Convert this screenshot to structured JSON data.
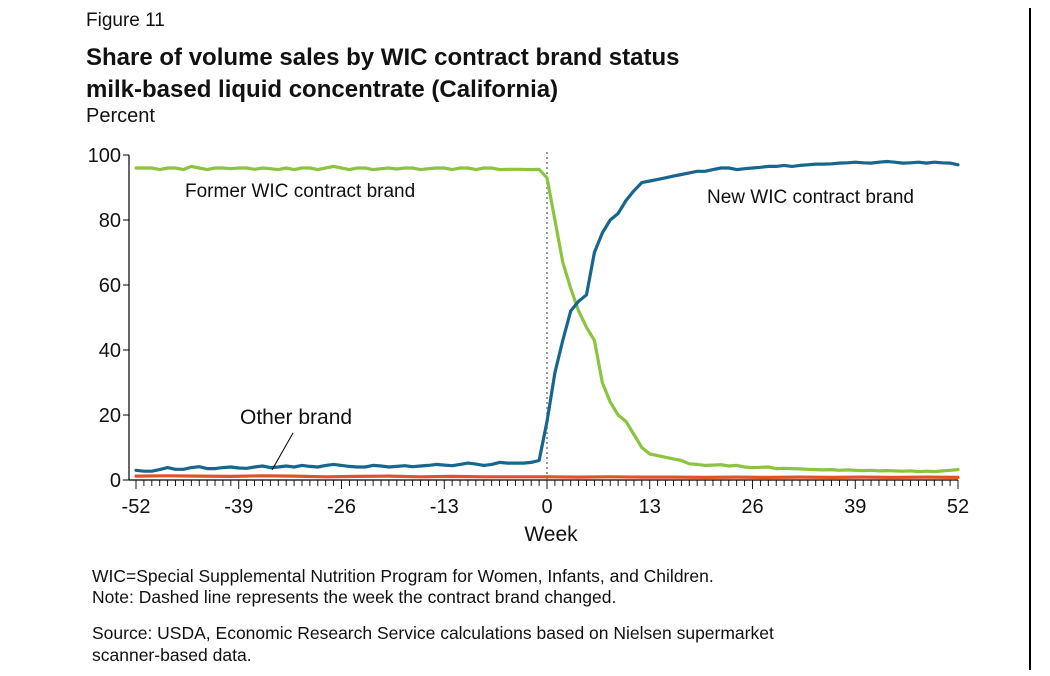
{
  "figure_label": "Figure 11",
  "title_line1": "Share of volume sales by WIC contract brand status",
  "title_line2": "milk-based liquid concentrate (California)",
  "unit_label": "Percent",
  "footnotes": {
    "line1": "WIC=Special Supplemental Nutrition Program for Women, Infants, and Children.",
    "line2": "Note: Dashed line represents the week the contract brand changed.",
    "source1": "Source: USDA, Economic Research Service calculations based on Nielsen supermarket",
    "source2": "scanner-based data."
  },
  "chart_data": {
    "type": "line",
    "xlabel": "Week",
    "ylabel": "Percent",
    "xlim": [
      -52,
      52
    ],
    "ylim": [
      0,
      100
    ],
    "x_ticks": [
      -52,
      -39,
      -26,
      -13,
      0,
      13,
      26,
      39,
      52
    ],
    "x_tick_labels": [
      "-52",
      "-39",
      "-26",
      "-13",
      "0",
      "13",
      "26",
      "39",
      "52"
    ],
    "y_ticks": [
      0,
      20,
      40,
      60,
      80,
      100
    ],
    "y_tick_labels": [
      "0",
      "20",
      "40",
      "60",
      "80",
      "100"
    ],
    "reference_line": {
      "x": 0,
      "style": "dashed",
      "color": "#999999"
    },
    "series": [
      {
        "name": "Former WIC contract brand",
        "color": "#8cc43f",
        "x": [
          -52,
          -51,
          -50,
          -49,
          -48,
          -47,
          -46,
          -45,
          -44,
          -43,
          -42,
          -41,
          -40,
          -39,
          -38,
          -37,
          -36,
          -35,
          -34,
          -33,
          -32,
          -31,
          -30,
          -29,
          -28,
          -27,
          -26,
          -25,
          -24,
          -23,
          -22,
          -21,
          -20,
          -19,
          -18,
          -17,
          -16,
          -15,
          -14,
          -13,
          -12,
          -11,
          -10,
          -9,
          -8,
          -7,
          -6,
          -5,
          -4,
          -3,
          -2,
          -1,
          0,
          1,
          2,
          3,
          4,
          5,
          6,
          7,
          8,
          9,
          10,
          11,
          12,
          13,
          14,
          15,
          16,
          17,
          18,
          19,
          20,
          21,
          22,
          23,
          24,
          25,
          26,
          27,
          28,
          29,
          30,
          31,
          32,
          33,
          34,
          35,
          36,
          37,
          38,
          39,
          40,
          41,
          42,
          43,
          44,
          45,
          46,
          47,
          48,
          49,
          50,
          51,
          52
        ],
        "values": [
          96,
          96,
          96,
          95.5,
          96,
          96,
          95.5,
          96.5,
          96,
          95.5,
          96,
          96,
          95.8,
          96,
          96,
          95.6,
          96,
          95.8,
          95.5,
          96,
          95.5,
          96,
          96,
          95.5,
          96,
          96.5,
          96,
          95.5,
          96,
          96,
          95.5,
          95.8,
          96,
          95.7,
          96,
          96,
          95.5,
          95.8,
          96,
          96,
          95.5,
          96,
          96,
          95.5,
          96,
          96,
          95.5,
          95.6,
          95.6,
          95.6,
          95.5,
          95.6,
          93,
          80,
          67,
          59,
          52,
          47,
          43,
          30,
          24,
          20,
          18,
          14,
          10,
          8,
          7.5,
          7,
          6.5,
          6,
          5,
          4.8,
          4.5,
          4.6,
          4.7,
          4.3,
          4.5,
          4,
          3.8,
          3.9,
          4,
          3.5,
          3.6,
          3.5,
          3.4,
          3.3,
          3.2,
          3.1,
          3.2,
          3.0,
          3.1,
          3.0,
          2.9,
          3.0,
          2.8,
          2.9,
          2.8,
          2.7,
          2.8,
          2.6,
          2.7,
          2.6,
          2.8,
          3.0,
          3.2
        ]
      },
      {
        "name": "New WIC contract brand",
        "color": "#17668e",
        "x": [
          -52,
          -51,
          -50,
          -49,
          -48,
          -47,
          -46,
          -45,
          -44,
          -43,
          -42,
          -41,
          -40,
          -39,
          -38,
          -37,
          -36,
          -35,
          -34,
          -33,
          -32,
          -31,
          -30,
          -29,
          -28,
          -27,
          -26,
          -25,
          -24,
          -23,
          -22,
          -21,
          -20,
          -19,
          -18,
          -17,
          -16,
          -15,
          -14,
          -13,
          -12,
          -11,
          -10,
          -9,
          -8,
          -7,
          -6,
          -5,
          -4,
          -3,
          -2,
          -1,
          0,
          1,
          2,
          3,
          4,
          5,
          6,
          7,
          8,
          9,
          10,
          11,
          12,
          13,
          14,
          15,
          16,
          17,
          18,
          19,
          20,
          21,
          22,
          23,
          24,
          25,
          26,
          27,
          28,
          29,
          30,
          31,
          32,
          33,
          34,
          35,
          36,
          37,
          38,
          39,
          40,
          41,
          42,
          43,
          44,
          45,
          46,
          47,
          48,
          49,
          50,
          51,
          52
        ],
        "values": [
          3,
          2.7,
          2.7,
          3.2,
          3.8,
          3.3,
          3.3,
          3.8,
          4.1,
          3.5,
          3.5,
          3.8,
          4,
          3.7,
          3.6,
          4,
          4.3,
          3.8,
          4,
          4.3,
          4,
          4.5,
          4.2,
          4,
          4.5,
          4.8,
          4.5,
          4.2,
          4,
          4,
          4.5,
          4.3,
          4,
          4.2,
          4.4,
          4.1,
          4.3,
          4.5,
          4.8,
          4.6,
          4.4,
          4.8,
          5.2,
          4.9,
          4.5,
          4.8,
          5.4,
          5.2,
          5.2,
          5.2,
          5.4,
          6,
          18,
          33,
          43,
          52,
          55,
          57,
          70,
          76,
          80,
          82,
          86,
          89,
          91.5,
          92,
          92.5,
          93,
          93.5,
          94,
          94.5,
          95,
          95,
          95.5,
          96,
          96,
          95.5,
          95.8,
          96,
          96.2,
          96.5,
          96.5,
          96.8,
          96.5,
          96.8,
          97,
          97.2,
          97.2,
          97.3,
          97.5,
          97.6,
          97.8,
          97.6,
          97.5,
          97.8,
          98,
          97.8,
          97.5,
          97.6,
          97.8,
          97.5,
          97.8,
          97.6,
          97.5,
          97
        ]
      },
      {
        "name": "Other brand",
        "color": "#e0522a",
        "x": [
          -52,
          -48,
          -44,
          -40,
          -36,
          -32,
          -28,
          -24,
          -20,
          -16,
          -12,
          -8,
          -4,
          0,
          4,
          8,
          12,
          16,
          20,
          24,
          28,
          32,
          36,
          40,
          44,
          48,
          52
        ],
        "values": [
          1.2,
          1.3,
          1.2,
          1.1,
          1.3,
          1.2,
          1.0,
          1.1,
          1.2,
          1.0,
          1.1,
          1.0,
          1.0,
          1.0,
          0.9,
          1.0,
          0.9,
          0.9,
          0.8,
          0.9,
          0.8,
          0.9,
          0.8,
          0.9,
          0.8,
          0.9,
          0.8
        ]
      }
    ],
    "annotations": [
      {
        "text": "Former WIC contract brand",
        "series": "Former WIC contract brand"
      },
      {
        "text": "New WIC contract brand",
        "series": "New WIC contract brand"
      },
      {
        "text": "Other brand",
        "series": "Other brand"
      }
    ]
  }
}
